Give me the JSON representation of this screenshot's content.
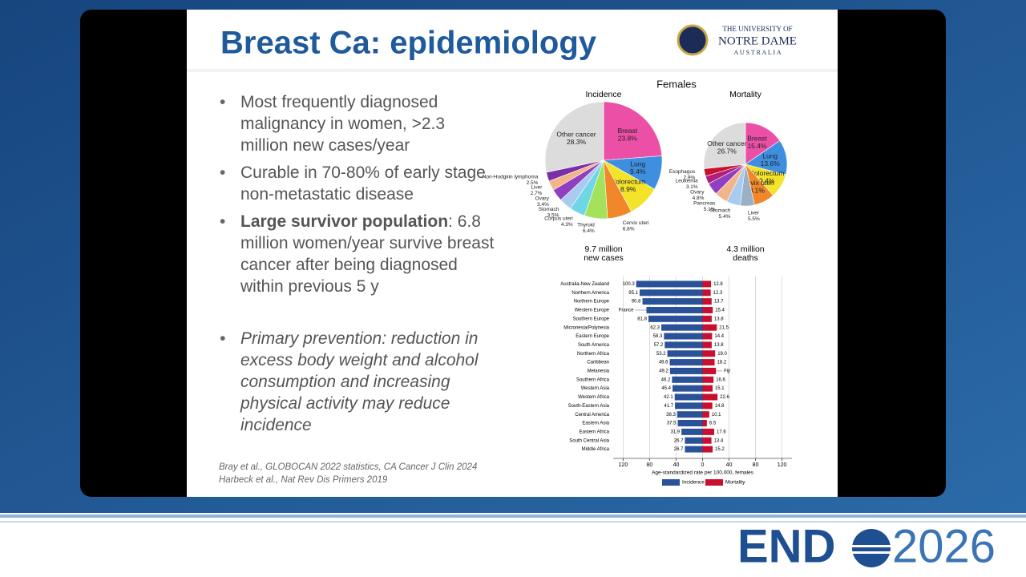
{
  "slide": {
    "title": "Breast Ca: epidemiology",
    "logo": [
      "THE UNIVERSITY OF",
      "NOTRE DAME",
      "A U S T R A L I A"
    ],
    "bullets": [
      {
        "text": "Most frequently diagnosed malignancy in women, >2.3 million new cases/year"
      },
      {
        "text": "Curable in 70-80% of early stage non-metastatic disease"
      },
      {
        "lead": "Large survivor population",
        "text": ": 6.8 million women/year survive breast cancer after being diagnosed within previous 5 y"
      },
      {
        "text": "Primary prevention: reduction in excess body weight and alcohol consumption and increasing physical activity may reduce incidence"
      }
    ],
    "references": [
      "Bray et al., GLOBOCAN 2022 statistics, CA Cancer J Clin 2024",
      "Harbeck et al., Nat Rev Dis Primers 2019"
    ],
    "figure_title": "Females"
  },
  "brand": {
    "left": "END",
    "right": "2026"
  },
  "chart_data": [
    {
      "type": "pie",
      "title": "Incidence",
      "annotation": [
        "9.7 million",
        "new cases"
      ],
      "categories": [
        "Breast",
        "Lung",
        "Colorectum",
        "Cervix uteri",
        "Thyroid",
        "Corpus uteri",
        "Stomach",
        "Ovary",
        "Liver",
        "Non-Hodgkin lymphoma",
        "Other cancer"
      ],
      "values": [
        23.8,
        9.4,
        8.9,
        6.8,
        6.4,
        4.3,
        3.5,
        3.4,
        2.7,
        2.5,
        28.3
      ],
      "value_labels": [
        "23.8%",
        "9.4%",
        "8.9%",
        "6.8%",
        "6.4%",
        "4.3%",
        "3.5%",
        "3.4%",
        "2.7%",
        "2.5%",
        "28.3%"
      ],
      "colors": [
        "#ec4fa6",
        "#3f8fe0",
        "#f3e42a",
        "#f0872a",
        "#a4e25c",
        "#6fd6e6",
        "#a9cbf0",
        "#8f3fc0",
        "#f3b48a",
        "#7a2fa8",
        "#dcdcdc"
      ]
    },
    {
      "type": "pie",
      "title": "Mortality",
      "annotation": [
        "4.3 million",
        "deaths"
      ],
      "categories": [
        "Breast",
        "Lung",
        "Colorectum",
        "Cervix uteri",
        "Liver",
        "Stomach",
        "Pancreas",
        "Ovary",
        "Leukemia",
        "Esophagus",
        "Other cancer"
      ],
      "values": [
        15.4,
        13.6,
        9.4,
        8.1,
        5.5,
        5.4,
        5.1,
        4.8,
        3.1,
        2.9,
        26.7
      ],
      "value_labels": [
        "15.4%",
        "13.6%",
        "9.4%",
        "8.1%",
        "5.5%",
        "5.4%",
        "5.1%",
        "4.8%",
        "3.1%",
        "2.9%",
        "26.7%"
      ],
      "colors": [
        "#ec4fa6",
        "#3f8fe0",
        "#f3e42a",
        "#f0872a",
        "#9ab0c4",
        "#a9cbf0",
        "#f3b48a",
        "#8f3fc0",
        "#b0207a",
        "#c8102e",
        "#dcdcdc"
      ]
    },
    {
      "type": "bar",
      "xlabel": "Age-standardized rate per 100,000, females",
      "categories": [
        "Australia-New Zealand",
        "Northern America",
        "Northern Europe",
        "Western Europe",
        "Southern Europe",
        "Micronesia/Polynesia",
        "Eastern Europe",
        "South America",
        "Northern Africa",
        "Caribbean",
        "Melanesia",
        "Southern Africa",
        "Western Asia",
        "Western Africa",
        "South-Eastern Asia",
        "Central America",
        "Eastern Asia",
        "Eastern Africa",
        "South Central Asia",
        "Middle Africa"
      ],
      "series": [
        {
          "name": "Incidence",
          "color": "#2a5298",
          "values": [
            100.3,
            95.1,
            90.8,
            84.8,
            81.8,
            62.3,
            58.3,
            57.2,
            53.2,
            49.6,
            49.2,
            46.2,
            45.4,
            42.1,
            41.7,
            38.3,
            37.5,
            31.9,
            26.7,
            26.7
          ],
          "value_labels": [
            "100.3",
            "95.1",
            "90.8",
            null,
            "81.8",
            "62.3",
            "58.3",
            "57.2",
            "53.2",
            "49.6",
            "49.2",
            "46.2",
            "45.4",
            "42.1",
            "41.7",
            "38.3",
            "37.5",
            "31.9",
            "26.7",
            "26.7"
          ]
        },
        {
          "name": "Mortality",
          "color": "#c8102e",
          "values": [
            12.8,
            12.3,
            13.7,
            15.4,
            13.8,
            21.5,
            14.4,
            13.8,
            19.0,
            18.2,
            20.2,
            16.6,
            15.1,
            22.6,
            14.8,
            10.1,
            6.5,
            17.6,
            13.4,
            15.2
          ],
          "value_labels": [
            "12.8",
            "12.3",
            "13.7",
            "15.4",
            "13.8",
            "21.5",
            "14.4",
            "13.8",
            "19.0",
            "18.2",
            null,
            "16.6",
            "15.1",
            "22.6",
            "14.8",
            "10.1",
            "6.5",
            "17.6",
            "13.4",
            "15.2"
          ]
        }
      ],
      "annotations": [
        {
          "text": "France",
          "row": 3
        },
        {
          "text": "Fiji",
          "row": 10
        }
      ],
      "xlim": [
        -135,
        135
      ],
      "xticks": [
        {
          "value": -120,
          "label": "120"
        },
        {
          "value": -80,
          "label": "80"
        },
        {
          "value": -40,
          "label": "40"
        },
        0,
        40,
        80,
        120
      ],
      "grid": true
    }
  ]
}
